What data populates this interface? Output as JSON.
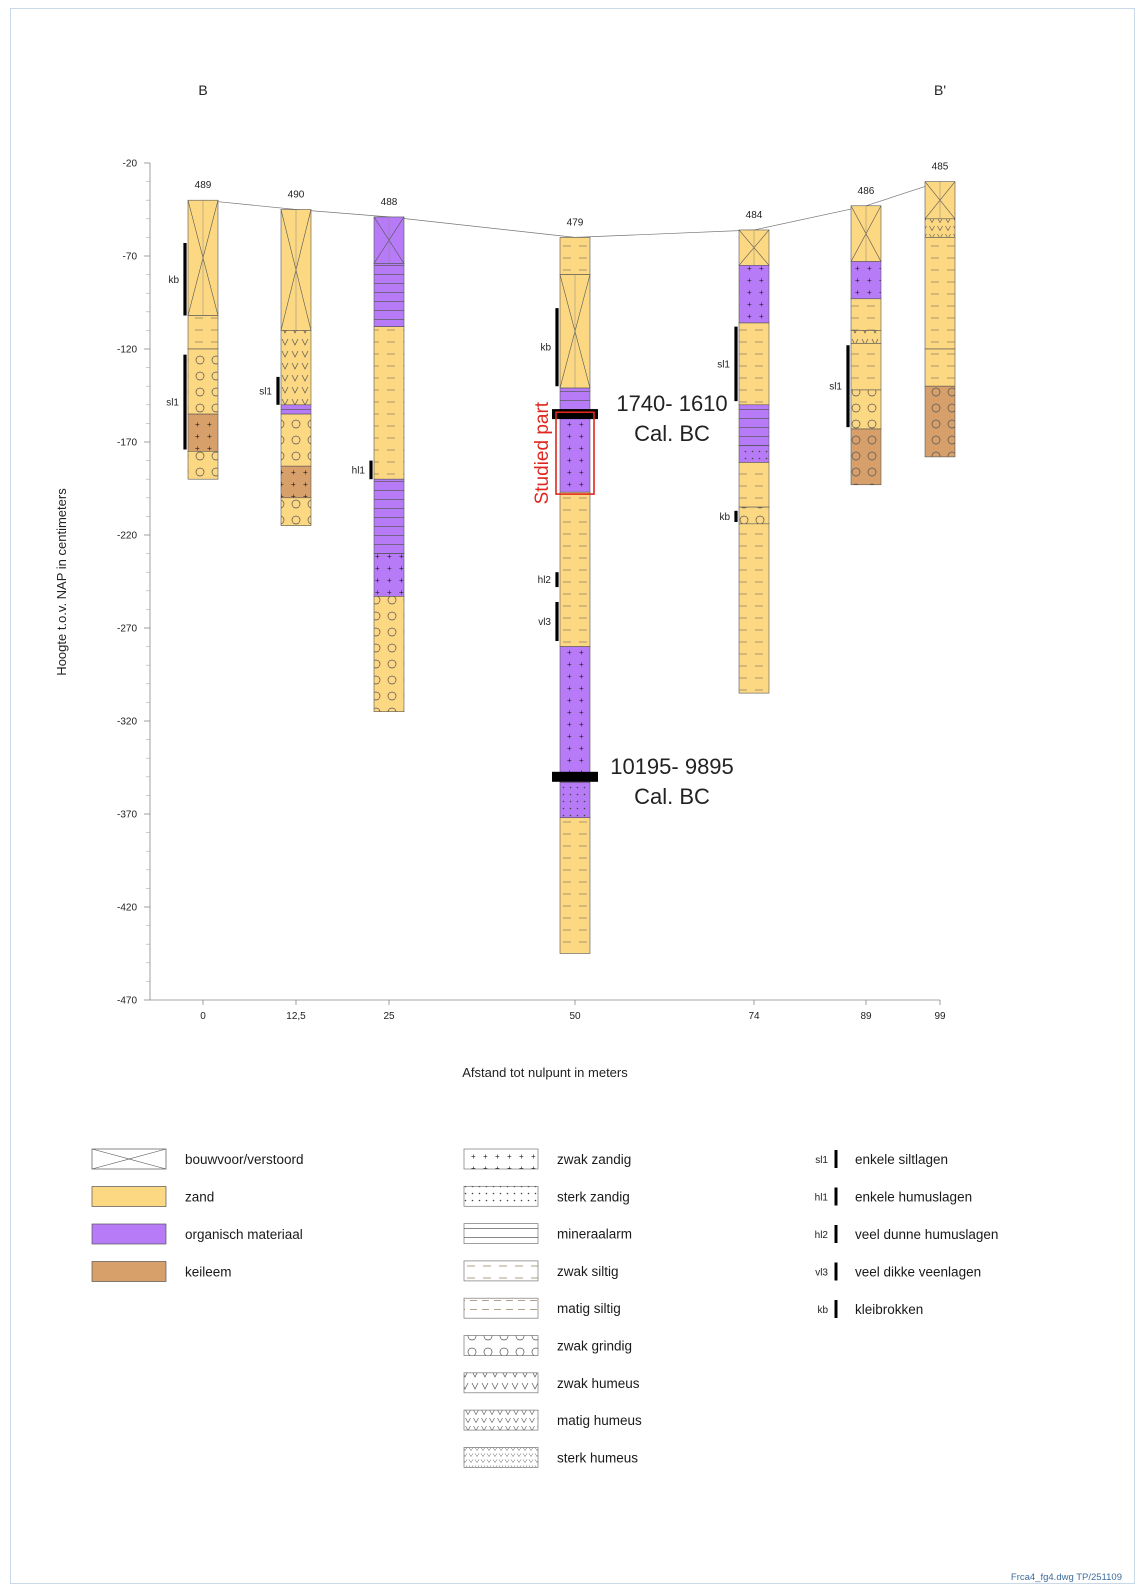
{
  "section": {
    "left_label": "B",
    "right_label": "B'",
    "y_axis_label": "Hoogte t.o.v. NAP in centimeters",
    "x_axis_label": "Afstand tot nulpunt in meters",
    "footer": "Frca4_fg4.dwg TP/251109",
    "y_ticks": [
      "-20",
      "-70",
      "-120",
      "-170",
      "-220",
      "-270",
      "-320",
      "-370",
      "-420",
      "-470"
    ],
    "x_ticks": [
      "0",
      "12,5",
      "25",
      "50",
      "74",
      "89",
      "99"
    ]
  },
  "cores": [
    {
      "id": "489",
      "distance_m": 0,
      "top_cm": -40,
      "bottom_cm": -190,
      "layers": [
        {
          "from": -40,
          "to": -102,
          "material": "zand",
          "pattern": "bouwvoor"
        },
        {
          "from": -102,
          "to": -120,
          "material": "zand",
          "pattern": "zwak siltig"
        },
        {
          "from": -120,
          "to": -155,
          "material": "zand",
          "pattern": "zwak grindig"
        },
        {
          "from": -155,
          "to": -175,
          "material": "keileem",
          "pattern": "zwak zandig"
        },
        {
          "from": -175,
          "to": -190,
          "material": "zand",
          "pattern": "zwak grindig"
        }
      ],
      "markers": [
        {
          "code": "kb",
          "from": -63,
          "to": -102
        },
        {
          "code": "sl1",
          "from": -123,
          "to": -174
        }
      ]
    },
    {
      "id": "490",
      "distance_m": 12.5,
      "top_cm": -45,
      "bottom_cm": -215,
      "layers": [
        {
          "from": -45,
          "to": -110,
          "material": "zand",
          "pattern": "bouwvoor"
        },
        {
          "from": -110,
          "to": -150,
          "material": "zand",
          "pattern": "zwak humeus"
        },
        {
          "from": -150,
          "to": -155,
          "material": "organisch materiaal",
          "pattern": "mineraalarm"
        },
        {
          "from": -155,
          "to": -183,
          "material": "zand",
          "pattern": "zwak grindig"
        },
        {
          "from": -183,
          "to": -200,
          "material": "keileem",
          "pattern": "zwak zandig"
        },
        {
          "from": -200,
          "to": -215,
          "material": "zand",
          "pattern": "zwak grindig"
        }
      ],
      "markers": [
        {
          "code": "sl1",
          "from": -135,
          "to": -150
        }
      ]
    },
    {
      "id": "488",
      "distance_m": 25,
      "top_cm": -49,
      "bottom_cm": -315,
      "layers": [
        {
          "from": -49,
          "to": -74,
          "material": "organisch materiaal",
          "pattern": "bouwvoor"
        },
        {
          "from": -74,
          "to": -108,
          "material": "organisch materiaal",
          "pattern": "mineraalarm"
        },
        {
          "from": -108,
          "to": -190,
          "material": "zand",
          "pattern": "zwak siltig"
        },
        {
          "from": -190,
          "to": -230,
          "material": "organisch materiaal",
          "pattern": "mineraalarm"
        },
        {
          "from": -230,
          "to": -253,
          "material": "organisch materiaal",
          "pattern": "zwak zandig"
        },
        {
          "from": -253,
          "to": -315,
          "material": "zand",
          "pattern": "zwak grindig"
        }
      ],
      "markers": [
        {
          "code": "hl1",
          "from": -180,
          "to": -190
        }
      ]
    },
    {
      "id": "479",
      "distance_m": 50,
      "top_cm": -60,
      "bottom_cm": -445,
      "layers": [
        {
          "from": -60,
          "to": -80,
          "material": "zand",
          "pattern": "zwak siltig"
        },
        {
          "from": -80,
          "to": -141,
          "material": "zand",
          "pattern": "bouwvoor"
        },
        {
          "from": -141,
          "to": -155,
          "material": "organisch materiaal",
          "pattern": "mineraalarm"
        },
        {
          "from": -155,
          "to": -197,
          "material": "organisch materiaal",
          "pattern": "zwak zandig"
        },
        {
          "from": -197,
          "to": -280,
          "material": "zand",
          "pattern": "zwak siltig"
        },
        {
          "from": -280,
          "to": -353,
          "material": "organisch materiaal",
          "pattern": "zwak zandig"
        },
        {
          "from": -353,
          "to": -372,
          "material": "organisch materiaal",
          "pattern": "sterk zandig"
        },
        {
          "from": -372,
          "to": -445,
          "material": "zand",
          "pattern": "zwak siltig"
        }
      ],
      "markers": [
        {
          "code": "kb",
          "from": -98,
          "to": -140
        },
        {
          "code": "hl2",
          "from": -240,
          "to": -248
        },
        {
          "code": "vl3",
          "from": -256,
          "to": -277
        }
      ],
      "dates": [
        {
          "label_line1": "1740- 1610",
          "label_line2": "Cal. BC",
          "at_cm": -155
        },
        {
          "label_line1": "10195- 9895",
          "label_line2": "Cal. BC",
          "at_cm": -350
        }
      ],
      "studied": {
        "label": "Studied part",
        "from": -154,
        "to": -198
      }
    },
    {
      "id": "484",
      "distance_m": 74,
      "top_cm": -56,
      "bottom_cm": -305,
      "layers": [
        {
          "from": -56,
          "to": -75,
          "material": "zand",
          "pattern": "bouwvoor"
        },
        {
          "from": -75,
          "to": -106,
          "material": "organisch materiaal",
          "pattern": "zwak zandig"
        },
        {
          "from": -106,
          "to": -150,
          "material": "zand",
          "pattern": "zwak siltig"
        },
        {
          "from": -150,
          "to": -172,
          "material": "organisch materiaal",
          "pattern": "mineraalarm"
        },
        {
          "from": -172,
          "to": -181,
          "material": "organisch materiaal",
          "pattern": "sterk zandig"
        },
        {
          "from": -181,
          "to": -205,
          "material": "zand",
          "pattern": "zwak siltig"
        },
        {
          "from": -205,
          "to": -214,
          "material": "zand",
          "pattern": "zwak grindig"
        },
        {
          "from": -214,
          "to": -305,
          "material": "zand",
          "pattern": "zwak siltig"
        }
      ],
      "markers": [
        {
          "code": "sl1",
          "from": -108,
          "to": -148
        },
        {
          "code": "kb",
          "from": -207,
          "to": -213
        }
      ]
    },
    {
      "id": "486",
      "distance_m": 89,
      "top_cm": -43,
      "bottom_cm": -193,
      "layers": [
        {
          "from": -43,
          "to": -73,
          "material": "zand",
          "pattern": "bouwvoor"
        },
        {
          "from": -73,
          "to": -93,
          "material": "organisch materiaal",
          "pattern": "zwak zandig"
        },
        {
          "from": -93,
          "to": -110,
          "material": "zand",
          "pattern": "zwak siltig"
        },
        {
          "from": -110,
          "to": -117,
          "material": "zand",
          "pattern": "zwak humeus"
        },
        {
          "from": -117,
          "to": -142,
          "material": "zand",
          "pattern": "zwak siltig"
        },
        {
          "from": -142,
          "to": -163,
          "material": "zand",
          "pattern": "zwak grindig"
        },
        {
          "from": -163,
          "to": -193,
          "material": "keileem",
          "pattern": "zwak grindig"
        }
      ],
      "markers": [
        {
          "code": "sl1",
          "from": -118,
          "to": -162
        }
      ]
    },
    {
      "id": "485",
      "distance_m": 99,
      "top_cm": -30,
      "bottom_cm": -178,
      "layers": [
        {
          "from": -30,
          "to": -50,
          "material": "zand",
          "pattern": "bouwvoor"
        },
        {
          "from": -50,
          "to": -60,
          "material": "zand",
          "pattern": "matig humeus"
        },
        {
          "from": -60,
          "to": -120,
          "material": "zand",
          "pattern": "zwak siltig"
        },
        {
          "from": -120,
          "to": -140,
          "material": "zand",
          "pattern": "zwak siltig"
        },
        {
          "from": -140,
          "to": -178,
          "material": "keileem",
          "pattern": "zwak grindig"
        }
      ],
      "markers": []
    }
  ],
  "legend": {
    "materials": [
      {
        "label": "bouwvoor/verstoord",
        "pattern": "bouwvoor",
        "color": "#ffffff"
      },
      {
        "label": "zand",
        "color": "#fcd883"
      },
      {
        "label": "organisch materiaal",
        "color": "#b77bf7"
      },
      {
        "label": "keileem",
        "color": "#d7a06a"
      }
    ],
    "patterns": [
      {
        "label": "zwak zandig",
        "pattern": "zwak zandig"
      },
      {
        "label": "sterk zandig",
        "pattern": "sterk zandig"
      },
      {
        "label": "mineraalarm",
        "pattern": "mineraalarm"
      },
      {
        "label": "zwak siltig",
        "pattern": "zwak siltig"
      },
      {
        "label": "matig siltig",
        "pattern": "matig siltig"
      },
      {
        "label": "zwak grindig",
        "pattern": "zwak grindig"
      },
      {
        "label": "zwak humeus",
        "pattern": "zwak humeus"
      },
      {
        "label": "matig humeus",
        "pattern": "matig humeus"
      },
      {
        "label": "sterk humeus",
        "pattern": "sterk humeus"
      }
    ],
    "markers": [
      {
        "code": "sl1",
        "label": "enkele siltlagen"
      },
      {
        "code": "hl1",
        "label": "enkele humuslagen"
      },
      {
        "code": "hl2",
        "label": "veel dunne humuslagen"
      },
      {
        "code": "vl3",
        "label": "veel dikke veenlagen"
      },
      {
        "code": "kb",
        "label": "kleibrokken"
      }
    ]
  },
  "colors": {
    "zand": "#fcd883",
    "organisch materiaal": "#b77bf7",
    "keileem": "#d7a06a",
    "studied_box": "#e0261f"
  }
}
